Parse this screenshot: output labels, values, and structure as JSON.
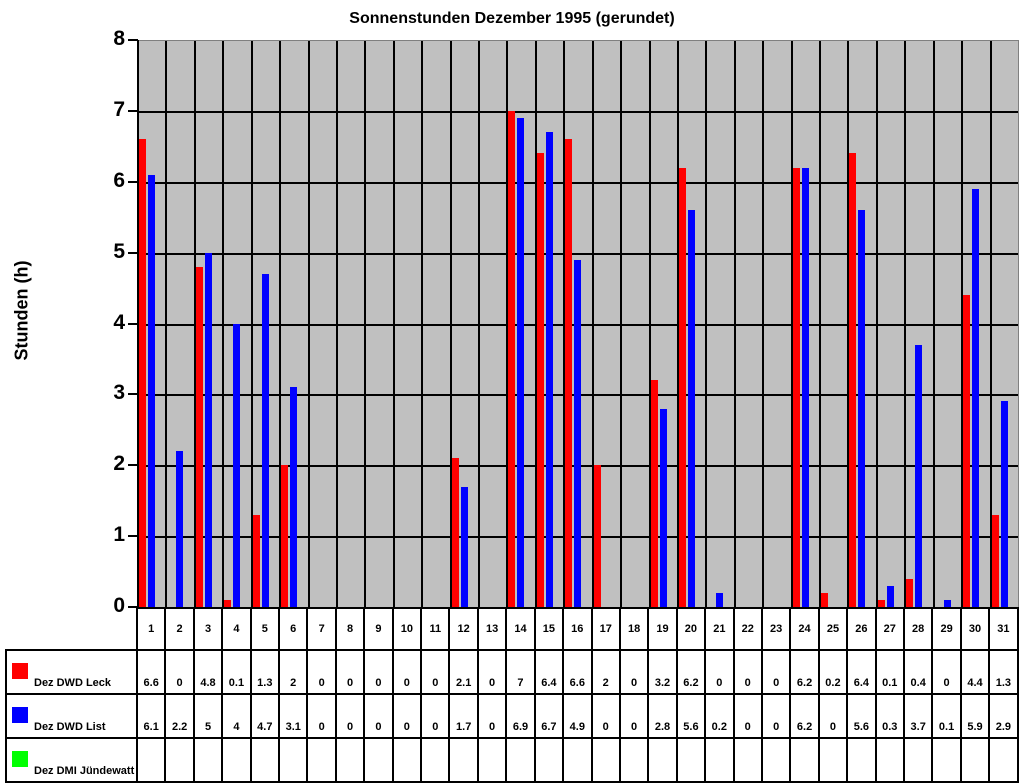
{
  "chart_data": {
    "type": "bar",
    "title": "Sonnenstunden Dezember 1995 (gerundet)",
    "xlabel": "",
    "ylabel": "Stunden (h)",
    "ylim": [
      0,
      8
    ],
    "yticks": [
      0,
      1,
      2,
      3,
      4,
      5,
      6,
      7,
      8
    ],
    "grid": true,
    "legend_position": "data-table-left",
    "categories": [
      "1",
      "2",
      "3",
      "4",
      "5",
      "6",
      "7",
      "8",
      "9",
      "10",
      "11",
      "12",
      "13",
      "14",
      "15",
      "16",
      "17",
      "18",
      "19",
      "20",
      "21",
      "22",
      "23",
      "24",
      "25",
      "26",
      "27",
      "28",
      "29",
      "30",
      "31"
    ],
    "series": [
      {
        "name": "Dez DWD Leck",
        "color": "#ff0000",
        "values": [
          6.6,
          0,
          4.8,
          0.1,
          1.3,
          2,
          0,
          0,
          0,
          0,
          0,
          2.1,
          0,
          7,
          6.4,
          6.6,
          2,
          0,
          3.2,
          6.2,
          0,
          0,
          0,
          6.2,
          0.2,
          6.4,
          0.1,
          0.4,
          0,
          4.4,
          1.3
        ]
      },
      {
        "name": "Dez DWD List",
        "color": "#0000ff",
        "values": [
          6.1,
          2.2,
          5,
          4,
          4.7,
          3.1,
          0,
          0,
          0,
          0,
          0,
          1.7,
          0,
          6.9,
          6.7,
          4.9,
          0,
          0,
          2.8,
          5.6,
          0.2,
          0,
          0,
          6.2,
          0,
          5.6,
          0.3,
          3.7,
          0.1,
          5.9,
          2.9
        ]
      },
      {
        "name": "Dez DMI Jündewatt",
        "color": "#00ff00",
        "values": [
          null,
          null,
          null,
          null,
          null,
          null,
          null,
          null,
          null,
          null,
          null,
          null,
          null,
          null,
          null,
          null,
          null,
          null,
          null,
          null,
          null,
          null,
          null,
          null,
          null,
          null,
          null,
          null,
          null,
          null,
          null
        ]
      }
    ]
  },
  "colors": {
    "plot_bg": "#c0c0c0",
    "grid": "#000000"
  }
}
